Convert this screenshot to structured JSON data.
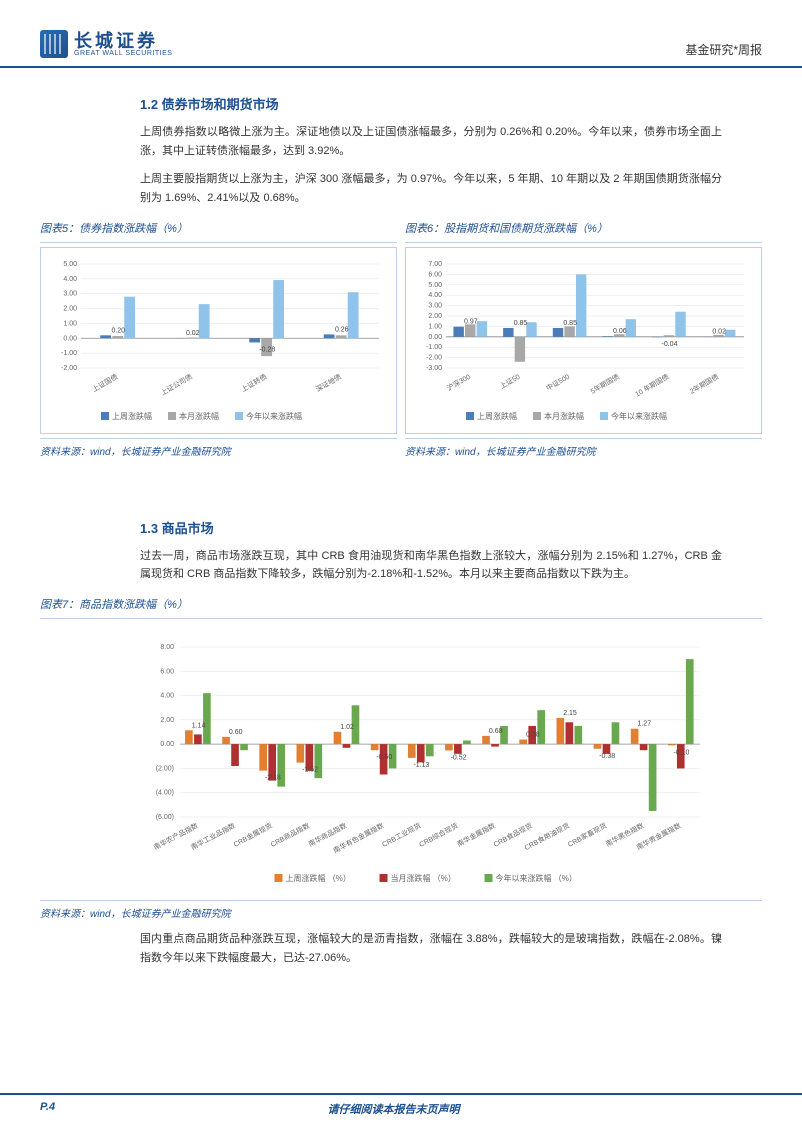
{
  "header": {
    "logo_cn": "长城证券",
    "logo_en": "GREAT WALL SECURITIES",
    "right": "基金研究*周报"
  },
  "sec12": {
    "title": "1.2 债券市场和期货市场",
    "p1": "上周债券指数以略微上涨为主。深证地债以及上证国债涨幅最多，分别为 0.26%和 0.20%。今年以来，债券市场全面上涨，其中上证转债涨幅最多，达到 3.92%。",
    "p2": "上周主要股指期货以上涨为主，沪深 300 涨幅最多，为 0.97%。今年以来，5 年期、10 年期以及 2 年期国债期货涨幅分别为 1.69%、2.41%以及 0.68%。"
  },
  "chart5": {
    "title": "图表5：债券指数涨跌幅（%）",
    "source": "资料来源：wind，长城证券产业金融研究院",
    "type": "bar",
    "categories": [
      "上证国债",
      "上证公司债",
      "上证转债",
      "深证地债"
    ],
    "series": [
      {
        "name": "上周涨跌幅",
        "color": "#4a7db8",
        "values": [
          0.2,
          0.02,
          -0.28,
          0.26
        ]
      },
      {
        "name": "本月涨跌幅",
        "color": "#a8a8a8",
        "values": [
          0.15,
          0.05,
          -1.2,
          0.2
        ]
      },
      {
        "name": "今年以来涨跌幅",
        "color": "#8fc3ea",
        "values": [
          2.8,
          2.3,
          3.92,
          3.1
        ]
      }
    ],
    "data_labels": [
      0.2,
      0.02,
      -0.28,
      0.26
    ],
    "ylim": [
      -2,
      5
    ],
    "ytick_step": 1,
    "label_fontsize": 7,
    "grid_color": "#e0e0e0",
    "background_color": "#ffffff"
  },
  "chart6": {
    "title": "图表6：股指期货和国债期货涨跌幅（%）",
    "source": "资料来源：wind，长城证券产业金融研究院",
    "type": "bar",
    "categories": [
      "沪深300",
      "上证50",
      "中证500",
      "5年期国债",
      "10 年期国债",
      "2年期国债"
    ],
    "series": [
      {
        "name": "上周涨跌幅",
        "color": "#4a7db8",
        "values": [
          0.97,
          0.85,
          0.85,
          0.06,
          -0.04,
          0.02
        ]
      },
      {
        "name": "本月涨跌幅",
        "color": "#a8a8a8",
        "values": [
          1.2,
          -2.4,
          1.0,
          0.25,
          0.15,
          0.18
        ]
      },
      {
        "name": "今年以来涨跌幅",
        "color": "#8fc3ea",
        "values": [
          1.5,
          1.4,
          6.0,
          1.69,
          2.41,
          0.68
        ]
      }
    ],
    "data_labels": [
      0.97,
      0.85,
      0.85,
      0.06,
      -0.04,
      0.02
    ],
    "ylim": [
      -3,
      7
    ],
    "ytick_step": 1,
    "label_fontsize": 7,
    "grid_color": "#e0e0e0",
    "background_color": "#ffffff"
  },
  "sec13": {
    "title": "1.3 商品市场",
    "p1": "过去一周，商品市场涨跌互现，其中 CRB 食用油现货和南华黑色指数上涨较大，涨幅分别为 2.15%和 1.27%，CRB 金属现货和 CRB 商品指数下降较多，跌幅分别为-2.18%和-1.52%。本月以来主要商品指数以下跌为主。",
    "p2": "国内重点商品期货品种涨跌互现，涨幅较大的是沥青指数，涨幅在 3.88%，跌幅较大的是玻璃指数，跌幅在-2.08%。镍指数今年以来下跌幅度最大，已达-27.06%。"
  },
  "chart7": {
    "title": "图表7：商品指数涨跌幅（%）",
    "source": "资料来源：wind，长城证券产业金融研究院",
    "type": "bar",
    "categories": [
      "南华农产品指数",
      "南华工业品指数",
      "CRB金属现货",
      "CRB商品指数",
      "南华商品指数",
      "南华有色金属指数",
      "CRB工业现货",
      "CRB综合现货",
      "南华金属指数",
      "CRB食品现货",
      "CRB食用油现货",
      "CRB家畜现货",
      "南华黑色指数",
      "南华贵金属指数"
    ],
    "series": [
      {
        "name": "上周涨跌幅 （%）",
        "color": "#e08030",
        "values": [
          1.14,
          0.6,
          -2.18,
          -1.52,
          1.02,
          -0.5,
          -1.13,
          -0.52,
          0.68,
          0.38,
          2.15,
          -0.38,
          1.27,
          -0.1
        ]
      },
      {
        "name": "当月涨跌幅 （%）",
        "color": "#b03030",
        "values": [
          0.8,
          -1.8,
          -3.0,
          -2.2,
          -0.3,
          -2.5,
          -1.5,
          -0.8,
          -0.2,
          1.5,
          1.8,
          -0.8,
          -0.5,
          -2.0
        ]
      },
      {
        "name": "今年以来涨跌幅 （%）",
        "color": "#6aa84f",
        "values": [
          4.2,
          -0.5,
          -3.5,
          -2.8,
          3.2,
          -2.0,
          -1.0,
          0.3,
          1.5,
          2.8,
          1.5,
          1.8,
          -5.5,
          7.0
        ]
      }
    ],
    "data_labels": [
      1.14,
      0.6,
      -2.18,
      -1.52,
      1.02,
      -0.5,
      -1.13,
      -0.52,
      0.68,
      0.38,
      2.15,
      -0.38,
      1.27,
      -0.1
    ],
    "ylim": [
      -6,
      8
    ],
    "ytick_step": 2,
    "label_fontsize": 7,
    "grid_color": "#e0e0e0",
    "background_color": "#ffffff"
  },
  "footer": {
    "left": "P.4",
    "center": "请仔细阅读本报告末页声明"
  }
}
